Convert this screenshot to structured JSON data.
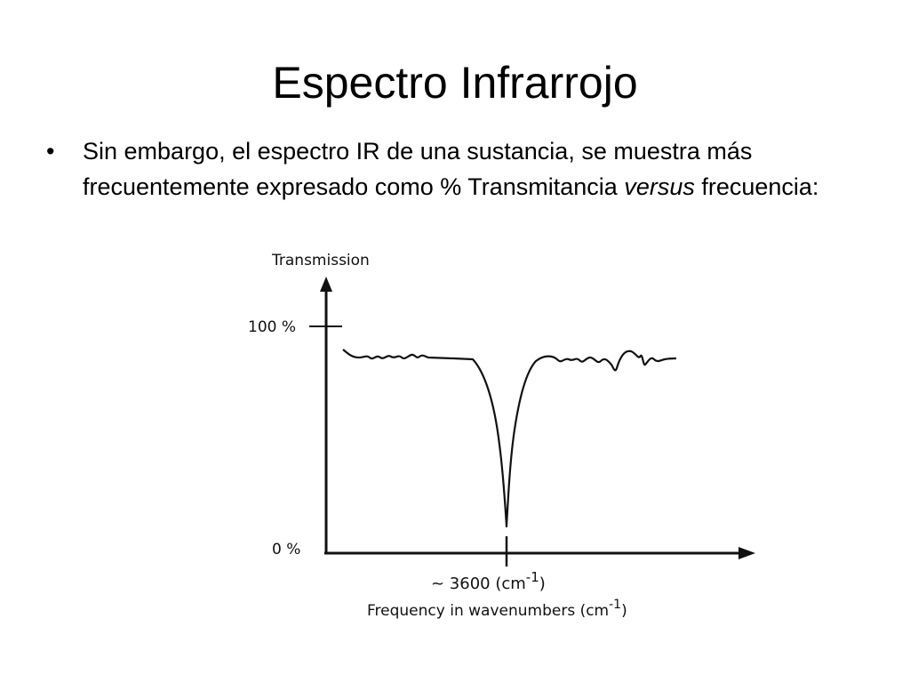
{
  "slide": {
    "title": "Espectro Infrarrojo",
    "bullet": {
      "marker": "•",
      "text_before": "Sin embargo, el espectro IR de una sustancia, se muestra más frecuentemente expresado como % Transmitancia ",
      "text_italic": "versus",
      "text_after": " frecuencia:"
    }
  },
  "chart_data": {
    "type": "line",
    "ylabel": "Transmission",
    "xlabel": "Frequency in wavenumbers (cm",
    "xlabel_sup": "-1",
    "xlabel_close": ")",
    "y_ticks": [
      "100 %",
      "0 %"
    ],
    "x_marker_label": "~ 3600 (cm",
    "x_marker_sup": "-1",
    "x_marker_close": ")",
    "peak_wavenumber": 3600,
    "baseline_transmission_percent": 88,
    "peak_min_transmission_percent": 11,
    "ylim": [
      0,
      100
    ],
    "grid": false,
    "line_color": "#111111",
    "axis_color": "#111111"
  }
}
